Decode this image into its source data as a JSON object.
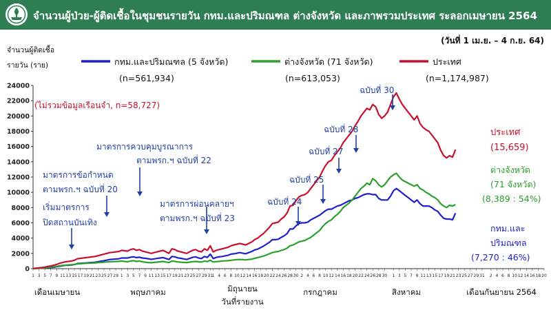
{
  "header": {
    "title": "จำนวนผู้ป่วย-ผู้ติดเชื้อในชุมชนรายวัน กทม.และปริมณฑล ต่างจังหวัด และภาพรวมประเทศ ระลอกเมษายน 2564",
    "logo_icon": "moph-seal-icon"
  },
  "chart_data": {
    "type": "line",
    "date_range": "(วันที่ 1 เม.ย. – 4 ก.ย. 64)",
    "ylabel_line1": "จำนวนผู้ติดเชื้อ",
    "ylabel_line2": "รายวัน (ราย)",
    "ylim": [
      0,
      24000
    ],
    "yticks": [
      0,
      2000,
      4000,
      6000,
      8000,
      10000,
      12000,
      14000,
      16000,
      18000,
      20000,
      22000,
      24000
    ],
    "xlabel": "วันที่รายงาน",
    "month_labels": [
      "เดือนเมษายน",
      "พฤษภาคม",
      "มิถุนายน",
      "กรกฎาคม",
      "สิงหาคม",
      "เดือนกันยายน 2564"
    ],
    "grid": false,
    "x_ticks": [
      [
        1,
        "1"
      ],
      [
        3,
        "3"
      ],
      [
        5,
        "5"
      ],
      [
        7,
        "7"
      ],
      [
        9,
        "9"
      ],
      [
        11,
        "11"
      ],
      [
        13,
        "13"
      ],
      [
        15,
        "15"
      ],
      [
        17,
        "17"
      ],
      [
        19,
        "19"
      ],
      [
        21,
        "21"
      ],
      [
        23,
        "23"
      ],
      [
        25,
        "25"
      ],
      [
        27,
        "27"
      ],
      [
        29,
        "29"
      ],
      [
        31,
        "1"
      ],
      [
        33,
        "3"
      ],
      [
        35,
        "5"
      ],
      [
        37,
        "7"
      ],
      [
        39,
        "9"
      ],
      [
        41,
        "11"
      ],
      [
        43,
        "13"
      ],
      [
        45,
        "15"
      ],
      [
        47,
        "17"
      ],
      [
        49,
        "19"
      ],
      [
        51,
        "21"
      ],
      [
        53,
        "23"
      ],
      [
        55,
        "25"
      ],
      [
        57,
        "27"
      ],
      [
        59,
        "29"
      ],
      [
        61,
        "31"
      ],
      [
        62,
        "1"
      ],
      [
        64,
        "4"
      ],
      [
        66,
        "6"
      ],
      [
        68,
        "8"
      ],
      [
        70,
        "10"
      ],
      [
        72,
        "12"
      ],
      [
        74,
        "14"
      ],
      [
        76,
        "16"
      ],
      [
        78,
        "18"
      ],
      [
        80,
        "20"
      ],
      [
        82,
        "22"
      ],
      [
        84,
        "24"
      ],
      [
        86,
        "26"
      ],
      [
        88,
        "28"
      ],
      [
        90,
        "30"
      ],
      [
        92,
        "2"
      ],
      [
        94,
        "4"
      ],
      [
        96,
        "6"
      ],
      [
        98,
        "8"
      ],
      [
        100,
        "10"
      ],
      [
        102,
        "12"
      ],
      [
        104,
        "14"
      ],
      [
        106,
        "16"
      ],
      [
        108,
        "18"
      ],
      [
        110,
        "20"
      ],
      [
        112,
        "22"
      ],
      [
        114,
        "24"
      ],
      [
        116,
        "26"
      ],
      [
        118,
        "28"
      ],
      [
        120,
        "30"
      ],
      [
        123,
        "1"
      ],
      [
        125,
        "3"
      ],
      [
        127,
        "5"
      ],
      [
        129,
        "7"
      ],
      [
        131,
        "9"
      ],
      [
        133,
        "11"
      ],
      [
        135,
        "13"
      ],
      [
        137,
        "15"
      ],
      [
        139,
        "17"
      ],
      [
        141,
        "19"
      ],
      [
        143,
        "21"
      ],
      [
        145,
        "23"
      ],
      [
        147,
        "25"
      ],
      [
        149,
        "27"
      ],
      [
        151,
        "29"
      ],
      [
        153,
        "31"
      ],
      [
        156,
        "2"
      ],
      [
        158,
        "4"
      ],
      [
        160,
        "6"
      ],
      [
        162,
        "8"
      ],
      [
        164,
        "10"
      ],
      [
        166,
        "12"
      ],
      [
        168,
        "14"
      ],
      [
        170,
        "16"
      ],
      [
        172,
        "18"
      ],
      [
        174,
        "20"
      ]
    ],
    "day_index_start": 1,
    "series": [
      {
        "key": "total",
        "name": "ประเทศ",
        "color": "#c8102e",
        "legend_count": "(n=1,174,987)",
        "end_label": "ประเทศ",
        "end_value": "(15,659)",
        "values": [
          20,
          60,
          100,
          150,
          200,
          300,
          350,
          450,
          550,
          700,
          800,
          900,
          950,
          1000,
          1100,
          1300,
          1350,
          1400,
          1450,
          1500,
          1550,
          1600,
          1700,
          1800,
          1900,
          2000,
          2100,
          2150,
          2200,
          2250,
          2400,
          2350,
          2300,
          2500,
          2600,
          2400,
          2500,
          2300,
          2200,
          2100,
          2000,
          2100,
          2200,
          2300,
          2400,
          2200,
          2000,
          2600,
          2500,
          2300,
          2200,
          2100,
          2000,
          2200,
          2400,
          2500,
          2300,
          2200,
          2600,
          2400,
          3000,
          2200,
          2400,
          2500,
          2600,
          2700,
          2800,
          3000,
          3100,
          3200,
          3300,
          3200,
          3100,
          3300,
          3500,
          3800,
          4000,
          4300,
          4600,
          5000,
          5400,
          5900,
          6000,
          6100,
          6500,
          6800,
          7300,
          8200,
          8300,
          8900,
          9400,
          9600,
          9700,
          10000,
          10500,
          11000,
          11500,
          12000,
          12800,
          13500,
          14000,
          14200,
          14800,
          15300,
          15800,
          16500,
          17000,
          17500,
          18000,
          18700,
          19300,
          20000,
          20500,
          21000,
          20800,
          21500,
          21200,
          20200,
          19700,
          20000,
          20500,
          21500,
          22500,
          23000,
          22200,
          21500,
          21000,
          20500,
          20000,
          19500,
          20000,
          19000,
          18500,
          18200,
          18000,
          17500,
          17000,
          16500,
          15500,
          14800,
          14500,
          14800,
          14600,
          15600
        ]
      },
      {
        "key": "upcountry",
        "name": "ต่างจังหวัด (71 จังหวัด)",
        "color": "#2ca02c",
        "legend_count": "(n=613,053)",
        "end_label": "ต่างจังหวัด",
        "end_label2": "(71 จังหวัด)",
        "end_value": "(8,389 : 54%)",
        "values": [
          5,
          20,
          50,
          80,
          120,
          160,
          200,
          260,
          300,
          380,
          420,
          460,
          500,
          520,
          560,
          620,
          650,
          680,
          700,
          720,
          740,
          760,
          800,
          820,
          850,
          880,
          900,
          920,
          940,
          960,
          1000,
          950,
          900,
          1000,
          1050,
          950,
          1000,
          900,
          850,
          800,
          780,
          820,
          860,
          900,
          950,
          870,
          800,
          1000,
          950,
          880,
          850,
          820,
          800,
          860,
          920,
          950,
          900,
          870,
          1000,
          930,
          1100,
          870,
          930,
          950,
          1000,
          1020,
          1050,
          1100,
          1150,
          1180,
          1200,
          1180,
          1150,
          1200,
          1250,
          1350,
          1450,
          1550,
          1650,
          1800,
          1950,
          2100,
          2200,
          2250,
          2400,
          2500,
          2700,
          3000,
          3100,
          3300,
          3500,
          3600,
          3700,
          3900,
          4100,
          4400,
          4700,
          5000,
          5500,
          5900,
          6200,
          6400,
          6800,
          7100,
          7500,
          8000,
          8300,
          8600,
          9000,
          9500,
          10000,
          10500,
          10800,
          11200,
          11000,
          11800,
          11500,
          11000,
          10700,
          11000,
          11500,
          12000,
          12300,
          12500,
          12000,
          11600,
          11400,
          11200,
          11000,
          10800,
          11000,
          10500,
          10300,
          10000,
          9800,
          9500,
          9300,
          9000,
          8500,
          8200,
          8000,
          8300,
          8200,
          8390
        ]
      },
      {
        "key": "bkk",
        "name": "กทม.และปริมณฑล (5 จังหวัด)",
        "color": "#1f1fd0",
        "legend_count": "(n=561,934)",
        "end_label": "กทม.และ",
        "end_label2": "ปริมณฑล",
        "end_value": "(7,270 : 46%)",
        "values": [
          15,
          40,
          50,
          70,
          80,
          140,
          150,
          190,
          250,
          320,
          380,
          440,
          450,
          480,
          540,
          680,
          700,
          720,
          750,
          780,
          810,
          840,
          900,
          980,
          1050,
          1120,
          1200,
          1230,
          1260,
          1290,
          1400,
          1400,
          1400,
          1500,
          1550,
          1450,
          1500,
          1400,
          1350,
          1300,
          1220,
          1280,
          1340,
          1400,
          1450,
          1330,
          1200,
          1600,
          1550,
          1420,
          1350,
          1280,
          1200,
          1340,
          1480,
          1550,
          1400,
          1330,
          1600,
          1470,
          1900,
          1330,
          1470,
          1550,
          1600,
          1680,
          1750,
          1900,
          1950,
          2020,
          2100,
          2020,
          1950,
          2100,
          2250,
          2450,
          2550,
          2750,
          2950,
          3200,
          3450,
          3800,
          3800,
          3850,
          4100,
          4300,
          4600,
          5200,
          5200,
          5600,
          5900,
          6000,
          6000,
          6100,
          6400,
          6600,
          6800,
          7000,
          7300,
          7600,
          7800,
          7800,
          8000,
          8200,
          8300,
          8500,
          8700,
          8900,
          9000,
          9200,
          9300,
          9500,
          9700,
          9800,
          9800,
          9700,
          9700,
          9200,
          9000,
          9000,
          9000,
          9500,
          10200,
          10500,
          10200,
          9900,
          9600,
          9300,
          9000,
          8700,
          9000,
          8500,
          8200,
          8200,
          8200,
          8000,
          7700,
          7500,
          7000,
          6600,
          6500,
          6500,
          6400,
          7270
        ]
      }
    ],
    "annotations": [
      {
        "key": "a1",
        "line1": "(ไม่รวมข้อมูลเรือนจำ, n=58,727)",
        "color": "#c8102e"
      },
      {
        "key": "a2",
        "line1": "มาตรการข้อกำหนด",
        "line2": "ตามพรก.ฯ ฉบับที่ 20",
        "color": "#1f3fa6",
        "day": 19
      },
      {
        "key": "a3",
        "line1": "เริ่มมาตรการ",
        "line2": "ปิดสถานบันเทิง",
        "color": "#1f3fa6",
        "day": 18
      },
      {
        "key": "a4",
        "line1": "มาตรการควบคุมบูรณาการ",
        "line2": "ตามพรก.ฯ ฉบับที่ 22",
        "color": "#1f3fa6",
        "day": 26
      },
      {
        "key": "a5",
        "line1": "มาตรการผ่อนคลายฯ",
        "line2": "ตามพรก.ฯ ฉบับที่ 23",
        "color": "#1f3fa6",
        "day": 61
      },
      {
        "key": "a6",
        "line1": "ฉบับที่ 24",
        "color": "#1f3fa6",
        "day": 90
      },
      {
        "key": "a7",
        "line1": "ฉบับที่ 25",
        "color": "#1f3fa6",
        "day": 95
      },
      {
        "key": "a8",
        "line1": "ฉบับที่ 27",
        "color": "#1f3fa6",
        "day": 101
      },
      {
        "key": "a9",
        "line1": "ฉบับที่ 28",
        "color": "#1f3fa6",
        "day": 106
      },
      {
        "key": "a10",
        "line1": "ฉบับที่ 30",
        "color": "#1f3fa6",
        "day": 118
      }
    ]
  }
}
